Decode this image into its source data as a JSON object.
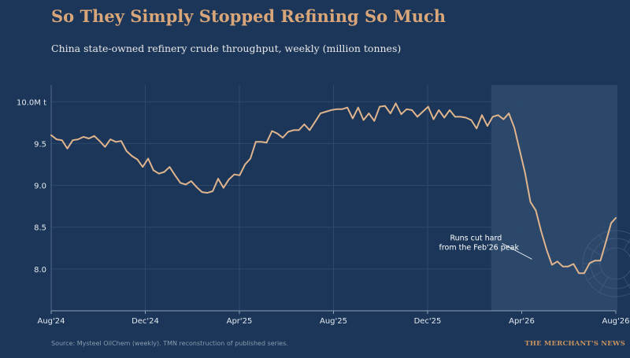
{
  "header": {
    "title": "So They Simply Stopped Refining So Much",
    "subtitle": "China state-owned refinery crude throughput, weekly (million tonnes)"
  },
  "footer": {
    "source": "Source: Mysteel OilChem (weekly). TMN reconstruction of published series.",
    "brand": "THE MERCHANT'S NEWS"
  },
  "colors": {
    "background": "#1b3658",
    "line": "#e0b48c",
    "highlight_band": "#2d4a6e",
    "grid": "#2c4a6c",
    "title": "#d9a679"
  },
  "chart_data": {
    "type": "line",
    "title": "So They Simply Stopped Refining So Much",
    "subtitle": "China state-owned refinery crude throughput, weekly (million tonnes)",
    "xlabel": "",
    "ylabel": "",
    "x_tick_labels": [
      "Aug'24",
      "Dec'24",
      "Apr'25",
      "Aug'25",
      "Dec'25",
      "Apr'26",
      "Aug'26"
    ],
    "y_ticks": [
      8.0,
      8.5,
      9.0,
      9.5,
      10.0
    ],
    "y_tick_labels": [
      "8.0",
      "8.5",
      "9.0",
      "9.5",
      "10.0M t"
    ],
    "xlim": [
      "2024-08-01",
      "2026-08-05"
    ],
    "ylim": [
      7.5,
      10.2
    ],
    "grid": true,
    "shaded_region": [
      "2026-02-24",
      "2026-08-05"
    ],
    "annotation": {
      "lines": [
        "Runs cut hard",
        "from the Feb'26 peak"
      ],
      "x": "2026-04-20",
      "y": 8.08
    },
    "series": [
      {
        "values": [
          [
            "2024-08-01",
            9.6
          ],
          [
            "2024-08-08",
            9.55
          ],
          [
            "2024-08-15",
            9.54
          ],
          [
            "2024-08-22",
            9.44
          ],
          [
            "2024-08-29",
            9.54
          ],
          [
            "2024-09-05",
            9.55
          ],
          [
            "2024-09-12",
            9.58
          ],
          [
            "2024-09-19",
            9.56
          ],
          [
            "2024-09-26",
            9.59
          ],
          [
            "2024-10-03",
            9.53
          ],
          [
            "2024-10-10",
            9.46
          ],
          [
            "2024-10-17",
            9.55
          ],
          [
            "2024-10-24",
            9.52
          ],
          [
            "2024-10-31",
            9.53
          ],
          [
            "2024-11-07",
            9.41
          ],
          [
            "2024-11-14",
            9.35
          ],
          [
            "2024-11-21",
            9.31
          ],
          [
            "2024-11-28",
            9.22
          ],
          [
            "2024-12-05",
            9.32
          ],
          [
            "2024-12-12",
            9.18
          ],
          [
            "2024-12-19",
            9.14
          ],
          [
            "2024-12-26",
            9.16
          ],
          [
            "2025-01-02",
            9.22
          ],
          [
            "2025-01-09",
            9.12
          ],
          [
            "2025-01-16",
            9.03
          ],
          [
            "2025-01-23",
            9.01
          ],
          [
            "2025-01-30",
            9.05
          ],
          [
            "2025-02-06",
            8.98
          ],
          [
            "2025-02-13",
            8.92
          ],
          [
            "2025-02-20",
            8.91
          ],
          [
            "2025-02-27",
            8.93
          ],
          [
            "2025-03-06",
            9.08
          ],
          [
            "2025-03-13",
            8.97
          ],
          [
            "2025-03-20",
            9.07
          ],
          [
            "2025-03-27",
            9.13
          ],
          [
            "2025-04-03",
            9.12
          ],
          [
            "2025-04-10",
            9.25
          ],
          [
            "2025-04-17",
            9.32
          ],
          [
            "2025-04-24",
            9.52
          ],
          [
            "2025-05-01",
            9.52
          ],
          [
            "2025-05-08",
            9.51
          ],
          [
            "2025-05-15",
            9.65
          ],
          [
            "2025-05-22",
            9.62
          ],
          [
            "2025-05-29",
            9.57
          ],
          [
            "2025-06-05",
            9.64
          ],
          [
            "2025-06-12",
            9.66
          ],
          [
            "2025-06-19",
            9.66
          ],
          [
            "2025-06-26",
            9.73
          ],
          [
            "2025-07-03",
            9.66
          ],
          [
            "2025-07-10",
            9.76
          ],
          [
            "2025-07-17",
            9.86
          ],
          [
            "2025-07-24",
            9.88
          ],
          [
            "2025-07-31",
            9.9
          ],
          [
            "2025-08-07",
            9.91
          ],
          [
            "2025-08-14",
            9.91
          ],
          [
            "2025-08-21",
            9.93
          ],
          [
            "2025-08-28",
            9.8
          ],
          [
            "2025-09-04",
            9.93
          ],
          [
            "2025-09-11",
            9.78
          ],
          [
            "2025-09-18",
            9.86
          ],
          [
            "2025-09-25",
            9.77
          ],
          [
            "2025-10-02",
            9.94
          ],
          [
            "2025-10-09",
            9.95
          ],
          [
            "2025-10-16",
            9.86
          ],
          [
            "2025-10-23",
            9.98
          ],
          [
            "2025-10-30",
            9.85
          ],
          [
            "2025-11-06",
            9.91
          ],
          [
            "2025-11-13",
            9.9
          ],
          [
            "2025-11-20",
            9.82
          ],
          [
            "2025-11-27",
            9.88
          ],
          [
            "2025-12-04",
            9.94
          ],
          [
            "2025-12-11",
            9.79
          ],
          [
            "2025-12-18",
            9.9
          ],
          [
            "2025-12-25",
            9.81
          ],
          [
            "2026-01-01",
            9.9
          ],
          [
            "2026-01-08",
            9.82
          ],
          [
            "2026-01-15",
            9.82
          ],
          [
            "2026-01-22",
            9.81
          ],
          [
            "2026-01-29",
            9.78
          ],
          [
            "2026-02-05",
            9.68
          ],
          [
            "2026-02-12",
            9.84
          ],
          [
            "2026-02-19",
            9.71
          ],
          [
            "2026-02-26",
            9.82
          ],
          [
            "2026-03-05",
            9.84
          ],
          [
            "2026-03-12",
            9.79
          ],
          [
            "2026-03-19",
            9.86
          ],
          [
            "2026-03-26",
            9.69
          ],
          [
            "2026-04-02",
            9.42
          ],
          [
            "2026-04-09",
            9.15
          ],
          [
            "2026-04-16",
            8.8
          ],
          [
            "2026-04-23",
            8.7
          ],
          [
            "2026-04-30",
            8.45
          ],
          [
            "2026-05-07",
            8.23
          ],
          [
            "2026-05-14",
            8.05
          ],
          [
            "2026-05-21",
            8.09
          ],
          [
            "2026-05-28",
            8.03
          ],
          [
            "2026-06-04",
            8.03
          ],
          [
            "2026-06-11",
            8.06
          ],
          [
            "2026-06-18",
            7.95
          ],
          [
            "2026-06-25",
            7.95
          ],
          [
            "2026-07-02",
            8.07
          ],
          [
            "2026-07-09",
            8.1
          ],
          [
            "2026-07-16",
            8.1
          ],
          [
            "2026-07-23",
            8.32
          ],
          [
            "2026-07-30",
            8.55
          ],
          [
            "2026-08-05",
            8.61
          ]
        ]
      }
    ]
  }
}
